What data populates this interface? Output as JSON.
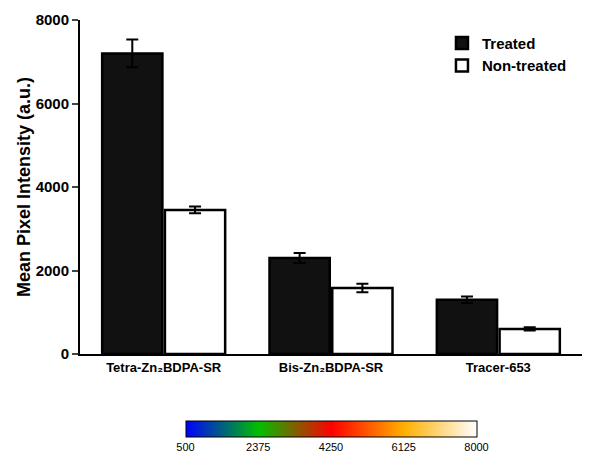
{
  "chart_data": {
    "type": "bar",
    "y_label": "Mean Pixel Intensity (a.u.)",
    "categories": [
      "Tetra-Zn₂BDPA-SR",
      "Bis-Zn₂BDPA-SR",
      "Tracer-653"
    ],
    "series": [
      {
        "name": "Treated",
        "color": "#111111",
        "values": [
          7200,
          2300,
          1300
        ],
        "errors": [
          330,
          120,
          80
        ]
      },
      {
        "name": "Non-treated",
        "color": "#ffffff",
        "values": [
          3450,
          1580,
          600
        ],
        "errors": [
          80,
          100,
          40
        ]
      }
    ],
    "ylim": [
      0,
      8000
    ],
    "yticks": [
      0,
      2000,
      4000,
      6000,
      8000
    ],
    "grid": false,
    "legend": "upper right",
    "colorbar": {
      "range": [
        500,
        8000
      ],
      "ticks": [
        500,
        2375,
        4250,
        6125,
        8000
      ]
    }
  }
}
